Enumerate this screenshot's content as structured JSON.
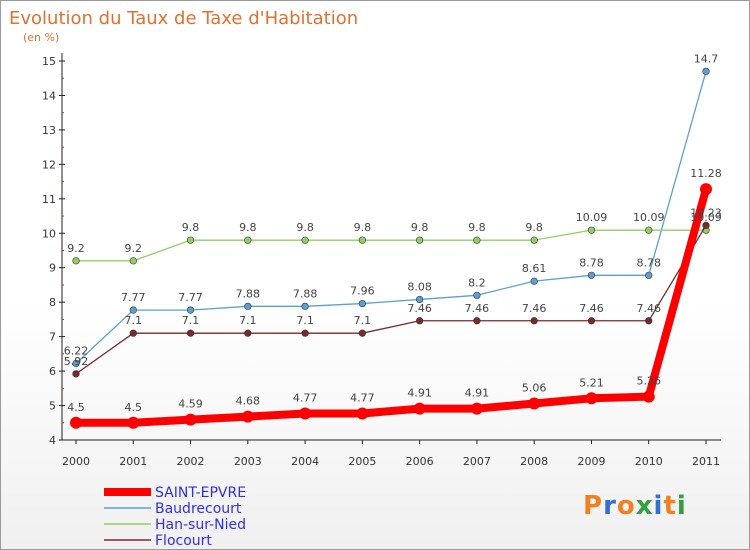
{
  "chart_data": {
    "type": "line",
    "title": "Evolution du Taux de Taxe d'Habitation",
    "subtitle": "(en %)",
    "x": [
      "2000",
      "2001",
      "2002",
      "2003",
      "2004",
      "2005",
      "2006",
      "2007",
      "2008",
      "2009",
      "2010",
      "2011"
    ],
    "ylim": [
      4,
      15
    ],
    "yticks": [
      "4",
      "5",
      "6",
      "7",
      "8",
      "9",
      "10",
      "11",
      "12",
      "13",
      "14",
      "15"
    ],
    "grid": false,
    "legend_position": "bottom-left",
    "series": [
      {
        "name": "SAINT-EPVRE",
        "color": "#ff0000",
        "values": [
          4.5,
          4.5,
          4.59,
          4.68,
          4.77,
          4.77,
          4.91,
          4.91,
          5.06,
          5.21,
          5.26,
          11.28
        ],
        "labels": [
          "4.5",
          "4.5",
          "4.59",
          "4.68",
          "4.77",
          "4.77",
          "4.91",
          "4.91",
          "5.06",
          "5.21",
          "5.26",
          "11.28"
        ]
      },
      {
        "name": "Baudrecourt",
        "color": "#5aa0d0",
        "values": [
          6.22,
          7.77,
          7.77,
          7.88,
          7.88,
          7.96,
          8.08,
          8.2,
          8.61,
          8.78,
          8.78,
          14.7
        ],
        "labels": [
          "6.22",
          "7.77",
          "7.77",
          "7.88",
          "7.88",
          "7.96",
          "8.08",
          "8.2",
          "8.61",
          "8.78",
          "8.78",
          "14.7"
        ]
      },
      {
        "name": "Han-sur-Nied",
        "color": "#90d060",
        "values": [
          9.2,
          9.2,
          9.8,
          9.8,
          9.8,
          9.8,
          9.8,
          9.8,
          9.8,
          10.09,
          10.09,
          10.09
        ],
        "labels": [
          "9.2",
          "9.2",
          "9.8",
          "9.8",
          "9.8",
          "9.8",
          "9.8",
          "9.8",
          "9.8",
          "10.09",
          "10.09",
          "10.09"
        ]
      },
      {
        "name": "Flocourt",
        "color": "#7a2a2a",
        "values": [
          5.92,
          7.1,
          7.1,
          7.1,
          7.1,
          7.1,
          7.46,
          7.46,
          7.46,
          7.46,
          7.46,
          10.23
        ],
        "labels": [
          "5.92",
          "7.1",
          "7.1",
          "7.1",
          "7.1",
          "7.1",
          "7.46",
          "7.46",
          "7.46",
          "7.46",
          "7.46",
          "10.23"
        ]
      }
    ]
  },
  "logo": {
    "letters": [
      "P",
      "r",
      "o",
      "x",
      "i",
      "t",
      "i"
    ],
    "colors": [
      "#f08020",
      "#3070d0",
      "#f08020",
      "#30a040",
      "#3070d0",
      "#f08020",
      "#30a040"
    ]
  }
}
